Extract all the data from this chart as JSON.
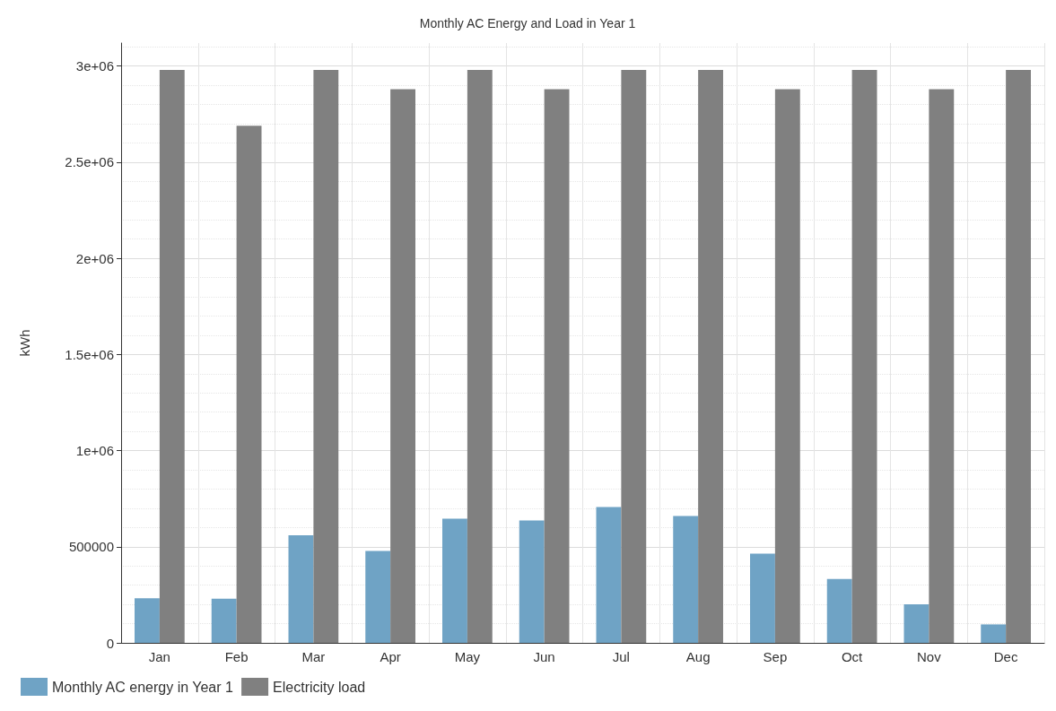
{
  "chart_data": {
    "type": "bar",
    "title": "Monthly AC Energy and Load in Year 1",
    "ylabel": "kWh",
    "categories": [
      "Jan",
      "Feb",
      "Mar",
      "Apr",
      "May",
      "Jun",
      "Jul",
      "Aug",
      "Sep",
      "Oct",
      "Nov",
      "Dec"
    ],
    "series": [
      {
        "name": "Monthly AC energy in Year 1",
        "color": "#6fa3c5",
        "values": [
          232000,
          230000,
          560000,
          478000,
          646000,
          637000,
          706000,
          660000,
          464000,
          332000,
          200000,
          96000
        ]
      },
      {
        "name": "Electricity load",
        "color": "#808080",
        "values": [
          2980000,
          2690000,
          2980000,
          2880000,
          2980000,
          2880000,
          2980000,
          2980000,
          2880000,
          2980000,
          2880000,
          2980000
        ]
      }
    ],
    "ylim": [
      0,
      3120000
    ],
    "yticks": [
      0,
      500000,
      {
        "value": 1000000,
        "label": "1e+06"
      },
      {
        "value": 1500000,
        "label": "1.5e+06"
      },
      {
        "value": 2000000,
        "label": "2e+06"
      },
      {
        "value": 2500000,
        "label": "2.5e+06"
      },
      {
        "value": 3000000,
        "label": "3e+06"
      }
    ],
    "grid": true,
    "legend": "bottom left"
  }
}
